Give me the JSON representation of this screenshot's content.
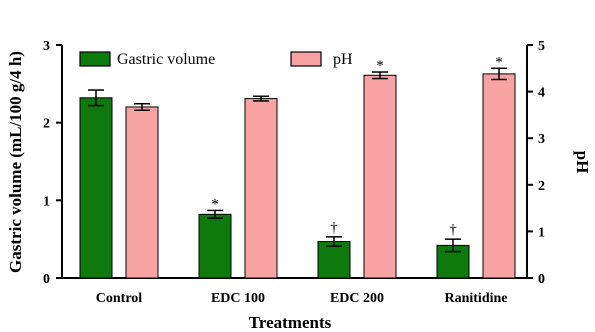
{
  "chart_data": {
    "type": "bar",
    "categories": [
      "Control",
      "EDC 100",
      "EDC 200",
      "Ranitidine"
    ],
    "xlabel": "Treatments",
    "ylabel_left": "Gastric volume (mL/100 g/4 h)",
    "ylabel_right": "pH",
    "ylim_left": [
      0,
      3
    ],
    "ylim_right": [
      0,
      5
    ],
    "yticks_left": [
      "0",
      "1",
      "2",
      "3"
    ],
    "yticks_right": [
      "0",
      "1",
      "2",
      "3",
      "4",
      "5"
    ],
    "legend_position": "top",
    "series": [
      {
        "name": "Gastric volume",
        "axis": "left",
        "color": "#0e7a0e",
        "values": [
          2.32,
          0.82,
          0.47,
          0.42
        ],
        "errors": [
          0.1,
          0.05,
          0.06,
          0.08
        ],
        "markers": [
          "",
          "*",
          "†",
          "†"
        ]
      },
      {
        "name": "pH",
        "axis": "right",
        "color": "#f7a3a3",
        "values": [
          3.67,
          3.85,
          4.35,
          4.38
        ],
        "errors": [
          0.07,
          0.05,
          0.07,
          0.12
        ],
        "markers": [
          "",
          "",
          "*",
          "*"
        ]
      }
    ]
  }
}
